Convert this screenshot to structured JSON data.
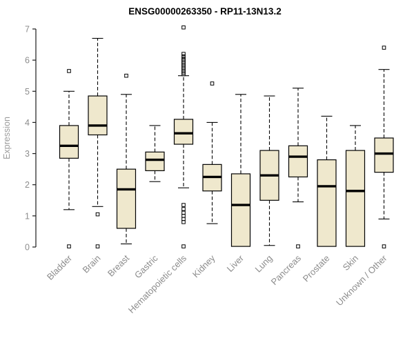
{
  "chart_data": {
    "type": "boxplot",
    "title": "ENSG00000263350 - RP11-13N13.2",
    "ylabel": "Expression",
    "ylim": [
      0,
      7
    ],
    "yticks": [
      0,
      1,
      2,
      3,
      4,
      5,
      6,
      7
    ],
    "grid": false,
    "legend": false,
    "box_fill": "#EFE8CD",
    "box_stroke": "#000000",
    "median_color": "#000000",
    "whisker_style": "dashed",
    "outlier_marker": "open-square",
    "axis_color": "#1a1a1a",
    "tick_label_color": "#8c8c8c",
    "category_label_color": "#8c8c8c",
    "categories": [
      "Bladder",
      "Brain",
      "Breast",
      "Gastric",
      "Hematopoietic cells",
      "Kidney",
      "Liver",
      "Lung",
      "Pancreas",
      "Prostate",
      "Skin",
      "Unknown / Other"
    ],
    "series": [
      {
        "category": "Bladder",
        "low": 1.2,
        "q1": 2.85,
        "median": 3.25,
        "q3": 3.9,
        "high": 5.0,
        "outliers": [
          5.65,
          0.02
        ]
      },
      {
        "category": "Brain",
        "low": 1.3,
        "q1": 3.6,
        "median": 3.9,
        "q3": 4.85,
        "high": 6.7,
        "outliers": [
          1.05,
          0.02
        ]
      },
      {
        "category": "Breast",
        "low": 0.1,
        "q1": 0.6,
        "median": 1.85,
        "q3": 2.5,
        "high": 4.9,
        "outliers": [
          5.5
        ]
      },
      {
        "category": "Gastric",
        "low": 2.1,
        "q1": 2.45,
        "median": 2.8,
        "q3": 3.05,
        "high": 3.9,
        "outliers": []
      },
      {
        "category": "Hematopoietic cells",
        "low": 1.9,
        "q1": 3.3,
        "median": 3.65,
        "q3": 4.1,
        "high": 5.5,
        "outliers": [
          7.05,
          6.2,
          6.12,
          6.05,
          6.0,
          5.95,
          5.9,
          5.85,
          5.8,
          5.75,
          5.7,
          5.65,
          5.6,
          5.55,
          1.35,
          1.22,
          1.1,
          1.0,
          0.9,
          0.8,
          0.02
        ]
      },
      {
        "category": "Kidney",
        "low": 0.75,
        "q1": 1.8,
        "median": 2.25,
        "q3": 2.65,
        "high": 4.0,
        "outliers": [
          5.25
        ]
      },
      {
        "category": "Liver",
        "low": 0.02,
        "q1": 0.02,
        "median": 1.35,
        "q3": 2.35,
        "high": 4.9,
        "outliers": []
      },
      {
        "category": "Lung",
        "low": 0.05,
        "q1": 1.5,
        "median": 2.3,
        "q3": 3.1,
        "high": 4.85,
        "outliers": []
      },
      {
        "category": "Pancreas",
        "low": 1.45,
        "q1": 2.25,
        "median": 2.9,
        "q3": 3.25,
        "high": 5.1,
        "outliers": [
          0.02
        ]
      },
      {
        "category": "Prostate",
        "low": 0.02,
        "q1": 0.02,
        "median": 1.95,
        "q3": 2.8,
        "high": 4.2,
        "outliers": []
      },
      {
        "category": "Skin",
        "low": 0.02,
        "q1": 0.02,
        "median": 1.8,
        "q3": 3.1,
        "high": 3.9,
        "outliers": []
      },
      {
        "category": "Unknown / Other",
        "low": 0.9,
        "q1": 2.4,
        "median": 3.0,
        "q3": 3.5,
        "high": 5.7,
        "outliers": [
          6.4,
          0.02
        ]
      }
    ]
  }
}
